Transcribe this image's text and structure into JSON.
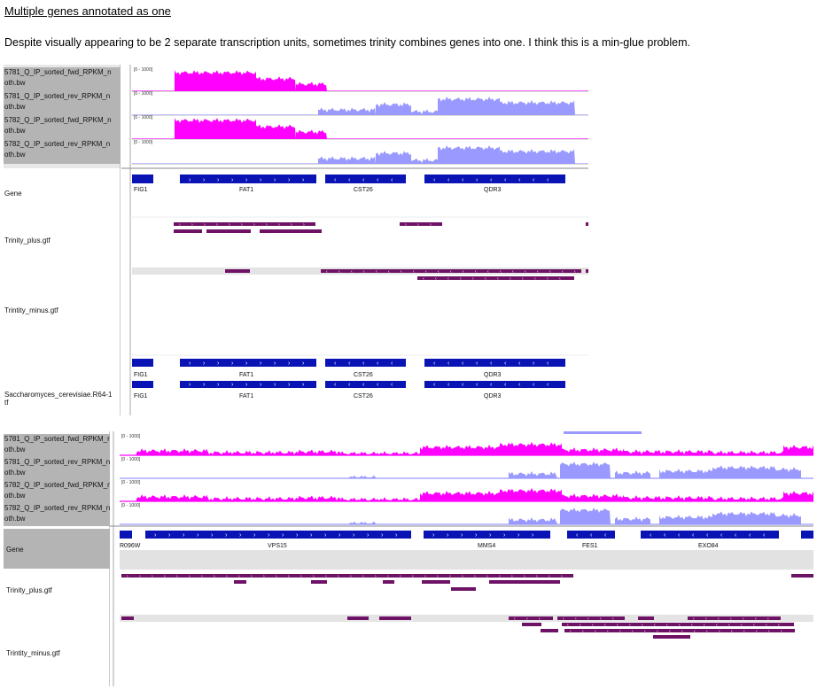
{
  "heading": "Multiple genes annotated as one",
  "paragraph": "Despite visually appearing to be 2 separate transcription units, sometimes trinity combines genes into one. I think this is a min-glue problem.",
  "colors": {
    "fwd": "#ff00ff",
    "rev": "#9999ff",
    "gene": "#0a14b4",
    "trinity": "#6e1266",
    "sidebar": "#b4b4b4"
  },
  "range_label": "[0 - 1000]",
  "panel1": {
    "coverage_tracks": [
      {
        "l1": "5781_Q_IP_sorted_fwd_RPKM_n",
        "l2": "oth.bw"
      },
      {
        "l1": "5781_Q_IP_sorted_rev_RPKM_n",
        "l2": "oth.bw"
      },
      {
        "l1": "5782_Q_IP_sorted_fwd_RPKM_n",
        "l2": "oth.bw"
      },
      {
        "l1": "5782_Q_IP_sorted_rev_RPKM_n",
        "l2": "oth.bw"
      }
    ],
    "gene_track": "Gene",
    "plus_track": "Trinity_plus.gtf",
    "minus_track": "Trintity_minus.gtf",
    "ref_track_l1": "Saccharomyces_cerevisiae.R64-1",
    "ref_track_l2": "tf",
    "genes": [
      "FIG1",
      "FAT1",
      "CST26",
      "QDR3"
    ]
  },
  "panel2": {
    "coverage_tracks": [
      {
        "l1": "5781_Q_IP_sorted_fwd_RPKM_n",
        "l2": "oth.bw"
      },
      {
        "l1": "5781_Q_IP_sorted_rev_RPKM_n",
        "l2": "oth.bw"
      },
      {
        "l1": "5782_Q_IP_sorted_fwd_RPKM_n",
        "l2": "oth.bw"
      },
      {
        "l1": "5782_Q_IP_sorted_rev_RPKM_n",
        "l2": "oth.bw"
      }
    ],
    "gene_track": "Gene",
    "plus_track": "Trinity_plus.gtf",
    "minus_track": "Trintity_minus.gtf",
    "genes": [
      "R096W",
      "VPS15",
      "MMS4",
      "FES1",
      "EXO84"
    ]
  }
}
